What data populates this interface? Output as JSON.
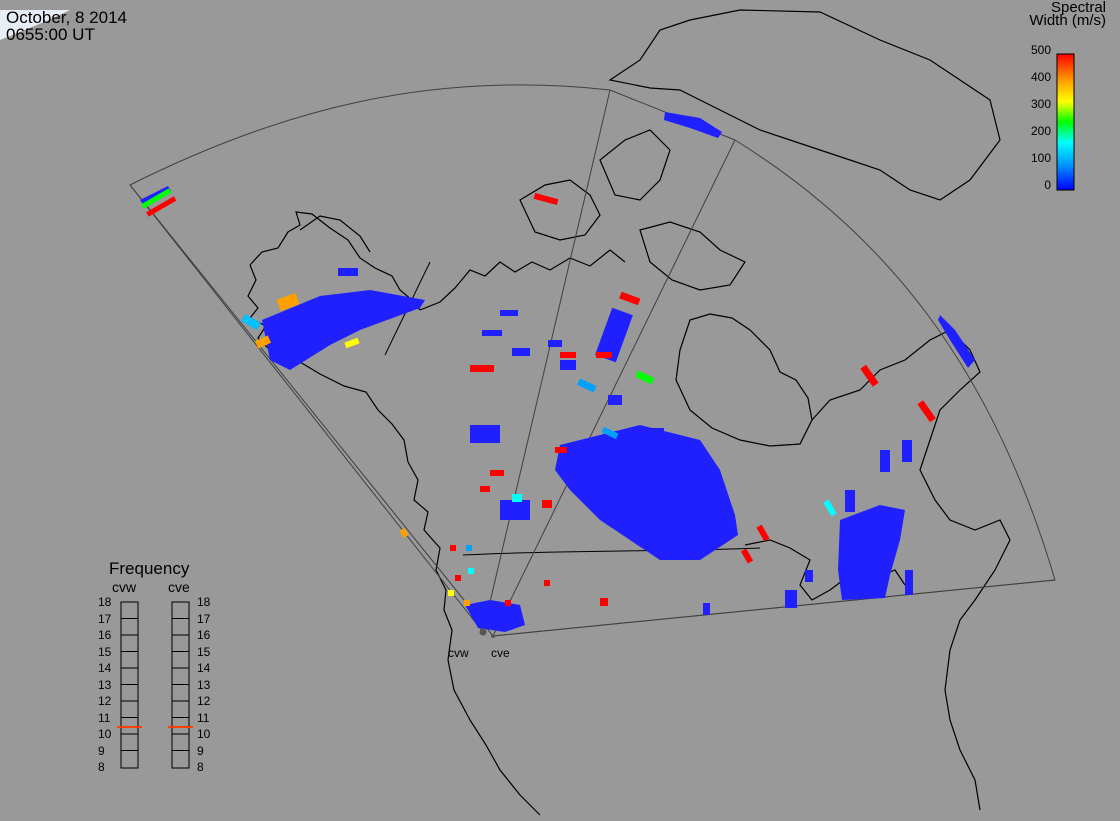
{
  "header": {
    "date": "October, 8 2014",
    "time": "0655:00 UT"
  },
  "colorbar": {
    "title_line1": "Spectral",
    "title_line2": "Width (m/s)",
    "ticks": [
      "500",
      "400",
      "300",
      "200",
      "100",
      "0"
    ],
    "range": [
      0,
      500
    ],
    "colors": [
      "#0000ff",
      "#00a0ff",
      "#00ffff",
      "#00ff00",
      "#ffff00",
      "#ffa000",
      "#ff0000"
    ]
  },
  "frequency_panel": {
    "title": "Frequency",
    "radars": [
      "cvw",
      "cve"
    ],
    "ticks": [
      "18",
      "17",
      "16",
      "15",
      "14",
      "13",
      "12",
      "11",
      "10",
      "9",
      "8"
    ],
    "cvw_frequency_mhz": 10.5,
    "cve_frequency_mhz": 10.5,
    "marker_color": "#ff4000"
  },
  "radar_sites": [
    "cvw",
    "cve"
  ],
  "colors": {
    "background": "#999999",
    "coastline": "#000000",
    "fov": "#404040",
    "scatter": "#2020ff"
  }
}
